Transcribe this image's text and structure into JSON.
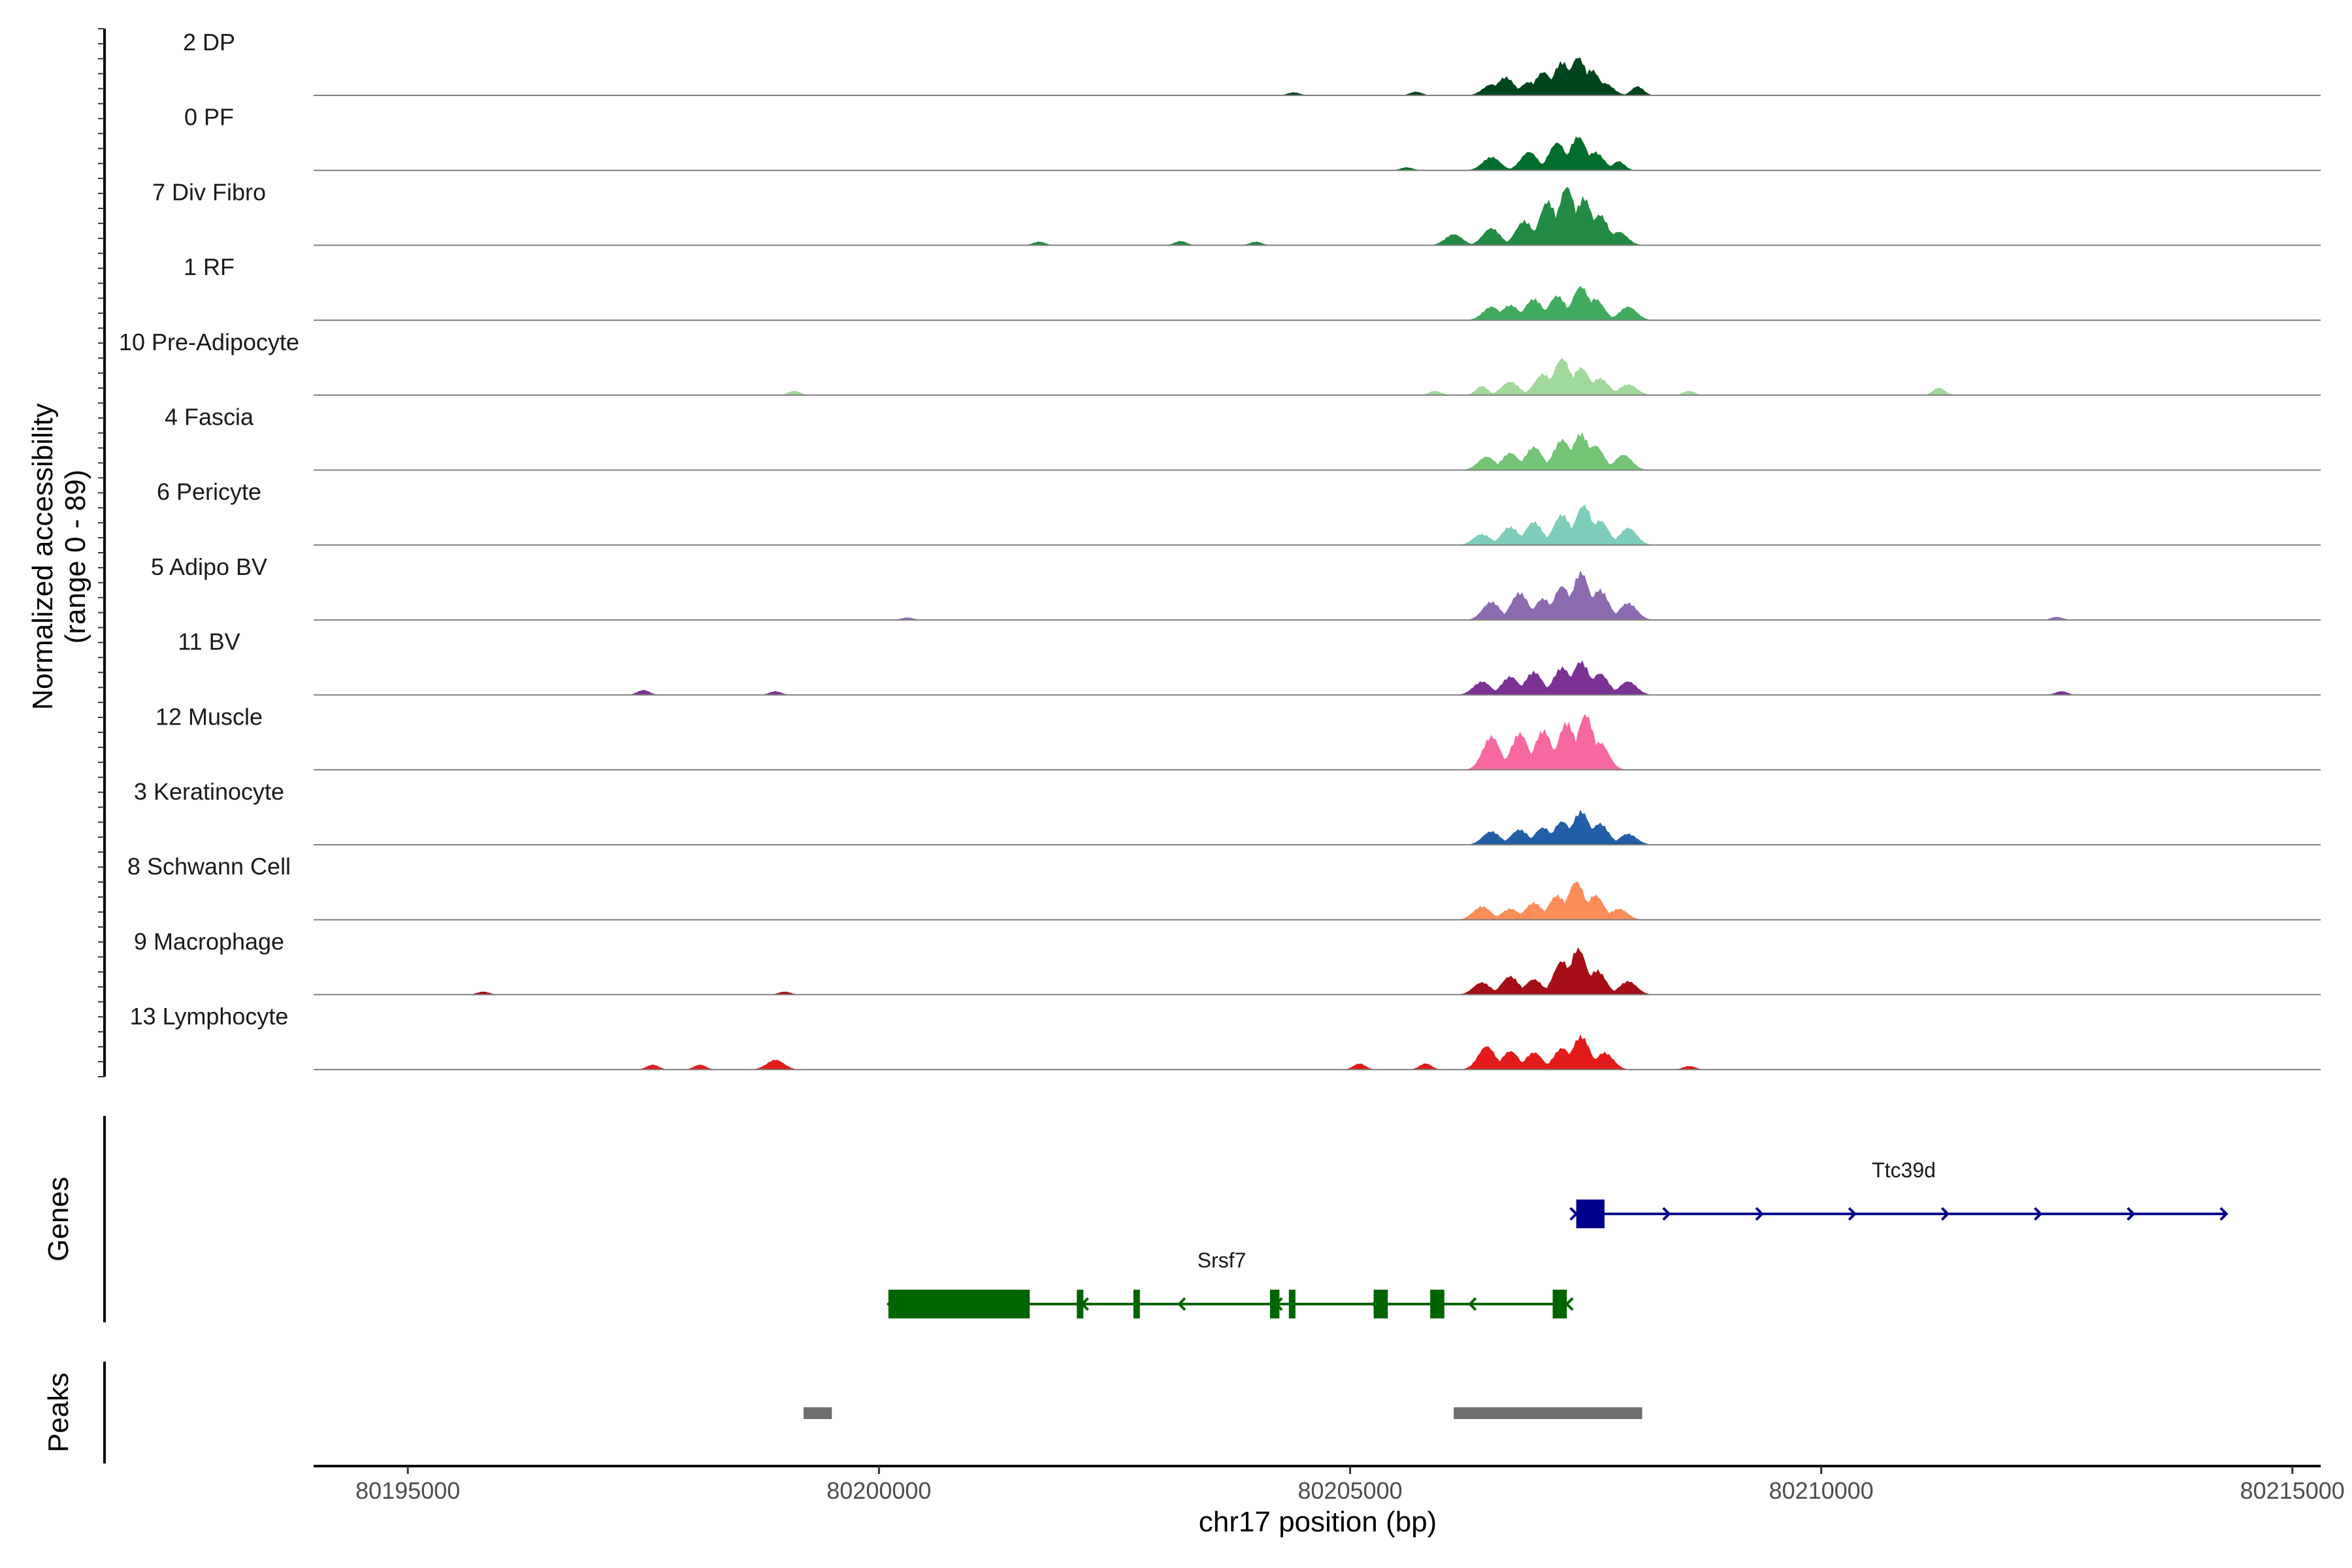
{
  "chart_data": {
    "type": "area",
    "region": {
      "chrom": "chr17",
      "start": 80194000,
      "end": 80215300
    },
    "xlabel": "chr17 position (bp)",
    "ylabel_line1": "Normalized accessibility",
    "ylabel_line2": "(range 0 - 89)",
    "y_range": [
      0,
      89
    ],
    "xticks": [
      80195000,
      80200000,
      80205000,
      80210000,
      80215000
    ],
    "xtick_labels": [
      "80195000",
      "80200000",
      "80205000",
      "80210000",
      "80215000"
    ],
    "tracks": [
      {
        "name": "2 DP",
        "color": "#00441b",
        "max": 0.62,
        "peaks": [
          [
            80206500,
            0.18
          ],
          [
            80206650,
            0.3
          ],
          [
            80206900,
            0.22
          ],
          [
            80207050,
            0.38
          ],
          [
            80207250,
            0.55
          ],
          [
            80207420,
            0.62
          ],
          [
            80207560,
            0.42
          ],
          [
            80207700,
            0.2
          ],
          [
            80208050,
            0.15
          ],
          [
            80205700,
            0.06
          ],
          [
            80204400,
            0.05
          ]
        ]
      },
      {
        "name": "0 PF",
        "color": "#006d2c",
        "max": 0.55,
        "peaks": [
          [
            80206500,
            0.22
          ],
          [
            80206900,
            0.3
          ],
          [
            80207200,
            0.45
          ],
          [
            80207420,
            0.55
          ],
          [
            80207600,
            0.3
          ],
          [
            80207850,
            0.15
          ],
          [
            80205600,
            0.05
          ]
        ]
      },
      {
        "name": "7 Div Fibro",
        "color": "#238b45",
        "max": 0.95,
        "peaks": [
          [
            80206100,
            0.18
          ],
          [
            80206500,
            0.28
          ],
          [
            80206850,
            0.4
          ],
          [
            80207100,
            0.72
          ],
          [
            80207300,
            0.95
          ],
          [
            80207480,
            0.78
          ],
          [
            80207650,
            0.5
          ],
          [
            80207850,
            0.22
          ],
          [
            80203200,
            0.07
          ],
          [
            80204000,
            0.06
          ],
          [
            80201700,
            0.06
          ]
        ]
      },
      {
        "name": "1 RF",
        "color": "#41ab5d",
        "max": 0.55,
        "peaks": [
          [
            80206500,
            0.22
          ],
          [
            80206700,
            0.25
          ],
          [
            80206950,
            0.35
          ],
          [
            80207200,
            0.4
          ],
          [
            80207450,
            0.55
          ],
          [
            80207600,
            0.35
          ],
          [
            80207950,
            0.22
          ]
        ]
      },
      {
        "name": "10 Pre-Adipocyte",
        "color": "#a1d99b",
        "max": 0.6,
        "peaks": [
          [
            80205900,
            0.07
          ],
          [
            80206400,
            0.15
          ],
          [
            80206700,
            0.22
          ],
          [
            80207050,
            0.35
          ],
          [
            80207250,
            0.6
          ],
          [
            80207450,
            0.45
          ],
          [
            80207650,
            0.28
          ],
          [
            80207950,
            0.18
          ],
          [
            80208600,
            0.07
          ],
          [
            80211250,
            0.12
          ],
          [
            80199100,
            0.07
          ]
        ]
      },
      {
        "name": "4 Fascia",
        "color": "#74c476",
        "max": 0.6,
        "peaks": [
          [
            80206450,
            0.22
          ],
          [
            80206700,
            0.28
          ],
          [
            80206950,
            0.38
          ],
          [
            80207250,
            0.5
          ],
          [
            80207450,
            0.6
          ],
          [
            80207600,
            0.4
          ],
          [
            80207900,
            0.25
          ]
        ]
      },
      {
        "name": "6 Pericyte",
        "color": "#7fcdbb",
        "max": 0.65,
        "peaks": [
          [
            80206400,
            0.18
          ],
          [
            80206700,
            0.3
          ],
          [
            80206950,
            0.38
          ],
          [
            80207250,
            0.5
          ],
          [
            80207480,
            0.65
          ],
          [
            80207650,
            0.4
          ],
          [
            80207950,
            0.28
          ]
        ]
      },
      {
        "name": "5 Adipo BV",
        "color": "#8c6bb1",
        "max": 0.78,
        "peaks": [
          [
            80206500,
            0.3
          ],
          [
            80206800,
            0.45
          ],
          [
            80207050,
            0.35
          ],
          [
            80207250,
            0.55
          ],
          [
            80207450,
            0.78
          ],
          [
            80207650,
            0.5
          ],
          [
            80207950,
            0.28
          ],
          [
            80212500,
            0.05
          ],
          [
            80200300,
            0.04
          ]
        ]
      },
      {
        "name": "11 BV",
        "color": "#7b3294",
        "max": 0.55,
        "peaks": [
          [
            80206400,
            0.22
          ],
          [
            80206700,
            0.3
          ],
          [
            80206950,
            0.38
          ],
          [
            80207250,
            0.45
          ],
          [
            80207450,
            0.55
          ],
          [
            80207650,
            0.35
          ],
          [
            80207950,
            0.22
          ],
          [
            80197500,
            0.08
          ],
          [
            80198900,
            0.06
          ],
          [
            80212550,
            0.06
          ]
        ]
      },
      {
        "name": "12 Muscle",
        "color": "#f768a1",
        "max": 0.9,
        "peaks": [
          [
            80206500,
            0.55
          ],
          [
            80206800,
            0.6
          ],
          [
            80207050,
            0.65
          ],
          [
            80207300,
            0.78
          ],
          [
            80207500,
            0.9
          ],
          [
            80207650,
            0.45
          ]
        ]
      },
      {
        "name": "3 Keratinocyte",
        "color": "#225ea8",
        "max": 0.55,
        "peaks": [
          [
            80206500,
            0.22
          ],
          [
            80206800,
            0.25
          ],
          [
            80207050,
            0.28
          ],
          [
            80207250,
            0.38
          ],
          [
            80207450,
            0.55
          ],
          [
            80207650,
            0.35
          ],
          [
            80207950,
            0.18
          ]
        ]
      },
      {
        "name": "8 Schwann Cell",
        "color": "#fc8d59",
        "max": 0.62,
        "peaks": [
          [
            80206400,
            0.22
          ],
          [
            80206700,
            0.18
          ],
          [
            80206950,
            0.28
          ],
          [
            80207200,
            0.4
          ],
          [
            80207400,
            0.62
          ],
          [
            80207600,
            0.4
          ],
          [
            80207850,
            0.18
          ]
        ]
      },
      {
        "name": "9 Macrophage",
        "color": "#a50f15",
        "max": 0.75,
        "peaks": [
          [
            80206400,
            0.2
          ],
          [
            80206700,
            0.3
          ],
          [
            80206950,
            0.25
          ],
          [
            80207250,
            0.55
          ],
          [
            80207420,
            0.75
          ],
          [
            80207620,
            0.4
          ],
          [
            80207950,
            0.22
          ],
          [
            80195800,
            0.05
          ],
          [
            80199000,
            0.05
          ]
        ]
      },
      {
        "name": "13 Lymphocyte",
        "color": "#e31a1c",
        "max": 0.55,
        "peaks": [
          [
            80206450,
            0.38
          ],
          [
            80206700,
            0.3
          ],
          [
            80206950,
            0.28
          ],
          [
            80207250,
            0.35
          ],
          [
            80207450,
            0.55
          ],
          [
            80207700,
            0.28
          ],
          [
            80197600,
            0.08
          ],
          [
            80198100,
            0.08
          ],
          [
            80198900,
            0.16
          ],
          [
            80205100,
            0.1
          ],
          [
            80205800,
            0.1
          ],
          [
            80208600,
            0.06
          ]
        ]
      }
    ],
    "genes": [
      {
        "name": "Ttc39d",
        "strand": "+",
        "color": "#00008b",
        "start": 80207400,
        "end": 80214300,
        "exons": [
          [
            80207400,
            80207700
          ]
        ]
      },
      {
        "name": "Srsf7",
        "strand": "-",
        "color": "#006400",
        "start": 80200100,
        "end": 80207300,
        "exons": [
          [
            80200100,
            80201600
          ],
          [
            80202100,
            80202140
          ],
          [
            80202700,
            80202750
          ],
          [
            80204150,
            80204250
          ],
          [
            80204350,
            80204420
          ],
          [
            80205250,
            80205400
          ],
          [
            80205850,
            80206000
          ],
          [
            80207150,
            80207300
          ]
        ]
      }
    ],
    "peaks": [
      [
        80199200,
        80199500
      ],
      [
        80206100,
        80208100
      ]
    ],
    "panel_titles": {
      "genes": "Genes",
      "peaks": "Peaks"
    }
  }
}
